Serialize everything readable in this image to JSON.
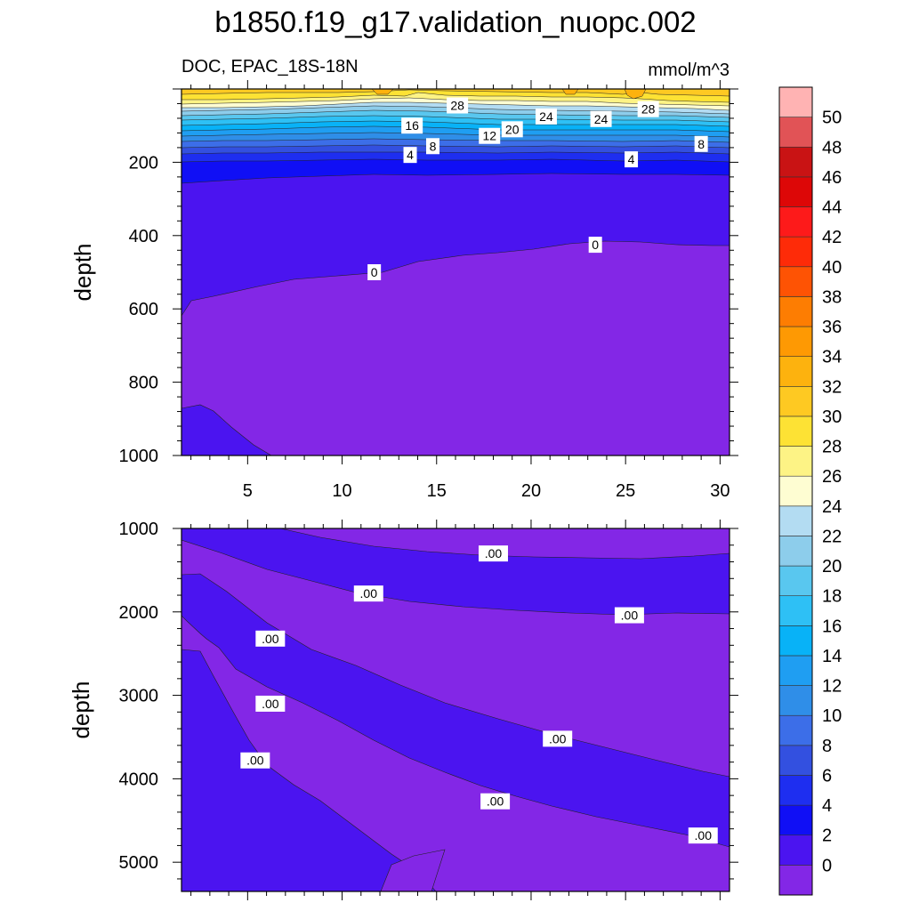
{
  "title": "b1850.f19_g17.validation_nuopc.002",
  "subtitle_left": "DOC, EPAC_18S-18N",
  "subtitle_right": "mmol/m^3",
  "chart_data": [
    {
      "type": "contour",
      "name": "upper-panel",
      "ylabel": "depth",
      "xlim": [
        1.5,
        30.5
      ],
      "ylim": [
        1000,
        0
      ],
      "x_ticks": [
        5,
        10,
        15,
        20,
        25,
        30
      ],
      "y_ticks": [
        200,
        400,
        600,
        800,
        1000
      ],
      "x_ticks_labels": [
        "5",
        "10",
        "15",
        "20",
        "25",
        "30"
      ],
      "y_ticks_labels": [
        "200",
        "400",
        "600",
        "800",
        "1000"
      ],
      "contour_labels": [
        {
          "text": "28",
          "x": 16.1,
          "y": 45
        },
        {
          "text": "16",
          "x": 13.7,
          "y": 100
        },
        {
          "text": "12",
          "x": 17.8,
          "y": 128
        },
        {
          "text": "20",
          "x": 19.0,
          "y": 110
        },
        {
          "text": "24",
          "x": 20.8,
          "y": 75
        },
        {
          "text": "24",
          "x": 23.7,
          "y": 82
        },
        {
          "text": "28",
          "x": 26.2,
          "y": 55
        },
        {
          "text": "8",
          "x": 14.8,
          "y": 156
        },
        {
          "text": "8",
          "x": 29.0,
          "y": 150
        },
        {
          "text": "4",
          "x": 13.6,
          "y": 180
        },
        {
          "text": "4",
          "x": 25.3,
          "y": 192
        },
        {
          "text": "0",
          "x": 11.7,
          "y": 500
        },
        {
          "text": "0",
          "x": 23.4,
          "y": 425
        }
      ]
    },
    {
      "type": "contour",
      "name": "lower-panel",
      "ylabel": "depth",
      "xlim": [
        1.5,
        30.5
      ],
      "ylim": [
        5350,
        1000
      ],
      "y_ticks": [
        1000,
        2000,
        3000,
        4000,
        5000
      ],
      "y_ticks_labels": [
        "1000",
        "2000",
        "3000",
        "4000",
        "5000"
      ],
      "contour_labels": [
        {
          "text": ".00",
          "x": 18.0,
          "y": 1300
        },
        {
          "text": ".00",
          "x": 11.4,
          "y": 1780
        },
        {
          "text": ".00",
          "x": 25.2,
          "y": 2040
        },
        {
          "text": ".00",
          "x": 6.2,
          "y": 2320
        },
        {
          "text": ".00",
          "x": 6.2,
          "y": 3100
        },
        {
          "text": ".00",
          "x": 5.4,
          "y": 3780
        },
        {
          "text": ".00",
          "x": 21.4,
          "y": 3520
        },
        {
          "text": ".00",
          "x": 18.1,
          "y": 4270
        },
        {
          "text": ".00",
          "x": 29.1,
          "y": 4680
        }
      ]
    }
  ],
  "colorbar": {
    "levels": [
      "0",
      "2",
      "4",
      "6",
      "8",
      "10",
      "12",
      "14",
      "16",
      "18",
      "20",
      "22",
      "24",
      "26",
      "28",
      "30",
      "32",
      "34",
      "36",
      "38",
      "40",
      "42",
      "44",
      "46",
      "48",
      "50"
    ],
    "colors": [
      "#8327e6",
      "#4b14f0",
      "#100ff5",
      "#1e2ef0",
      "#3350e0",
      "#3c6ee8",
      "#2f8ee8",
      "#1f9ef2",
      "#08b2f7",
      "#2ec0f5",
      "#59c7ef",
      "#8dcdeb",
      "#b3dcf2",
      "#fefdd2",
      "#fdf385",
      "#fde234",
      "#fec922",
      "#fdb20e",
      "#fe9903",
      "#fd7d02",
      "#fe5304",
      "#fe2b08",
      "#fd1a1a",
      "#dd0707",
      "#c91314",
      "#e15356",
      "#ffb3b3"
    ]
  },
  "colors": {
    "upper_deep": "#4b14f0",
    "violet": "#8327e6",
    "blue": "#4b14f0"
  }
}
